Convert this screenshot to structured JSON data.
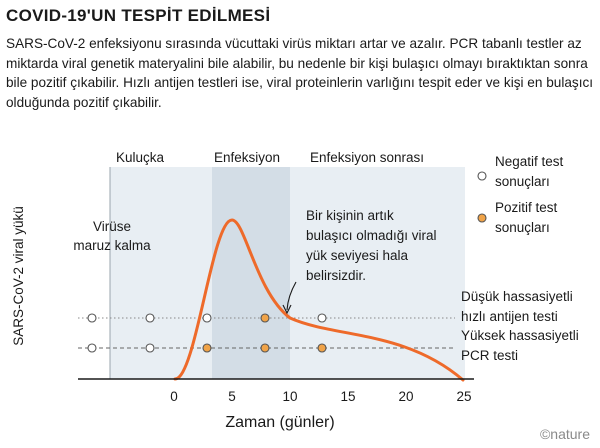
{
  "header": {
    "title": "COVID-19'UN TESPİT EDİLMESİ",
    "subtitle": "SARS-CoV-2 enfeksiyonu sırasında vücuttaki virüs miktarı artar ve azalır. PCR tabanlı testler az miktarda viral genetik materyalini bile alabilir, bu nedenle bir kişi bulaşıcı olmayı bıraktıktan sonra bile pozitif çıkabilir. Hızlı antijen testleri ise, viral proteinlerin varlığını tespit eder ve kişi en bulaşıcı olduğunda pozitif çıkabilir."
  },
  "diagram": {
    "phases": {
      "incubation": "Kuluçka",
      "infection": "Enfeksiyon",
      "post": "Enfeksiyon sonrası"
    },
    "ylabel": "SARS-CoV-2 viral yükü",
    "xlabel": "Zaman (günler)",
    "xticks": [
      "0",
      "5",
      "10",
      "15",
      "20",
      "25"
    ],
    "exposure": {
      "line1": "Virüse",
      "line2": "maruz kalma"
    },
    "annotation": {
      "line1": "Bir kişinin artık",
      "line2": "bulaşıcı olmadığı viral",
      "line3": "yük seviyesi hala",
      "line4": "belirsizdir."
    },
    "legend": {
      "negative": {
        "line1": "Negatif test",
        "line2": "sonuçları",
        "color": "#ffffff"
      },
      "positive": {
        "line1": "Pozitif test",
        "line2": "sonuçları",
        "color": "#f0a348"
      }
    },
    "tests": {
      "antigen": {
        "line1": "Düşük hassasiyetli",
        "line2": "hızlı antijen testi"
      },
      "pcr": {
        "line1": "Yüksek hassasiyetli",
        "line2": "PCR testi"
      }
    },
    "colors": {
      "curve": "#ee6a2a",
      "shade_light": "#e8eef3",
      "shade_dark": "#d3dde6",
      "positive": "#f0a348"
    }
  },
  "credit": "©nature"
}
